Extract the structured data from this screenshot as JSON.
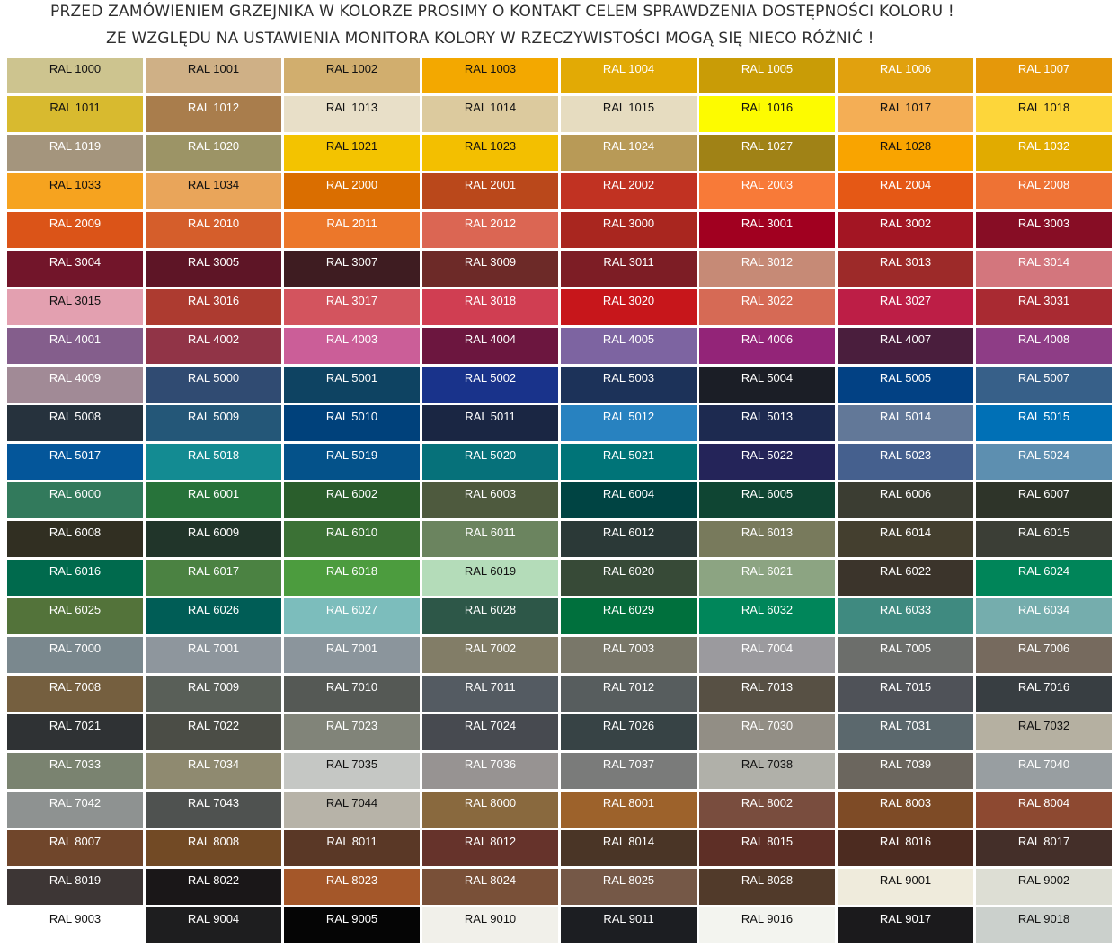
{
  "header": {
    "line1": "PRZED ZAMÓWIENIEM GRZEJNIKA W KOLORZE PROSIMY O KONTAKT CELEM SPRAWDZENIA DOSTĘPNOŚCI KOLORU !",
    "line2": "ZE WZGLĘDU NA USTAWIENIA MONITORA KOLORY W RZECZYWISTOŚCI MOGĄ SIĘ NIECO RÓŻNIĆ !"
  },
  "swatches": [
    {
      "label": "RAL 1000",
      "color": "#CDC48F",
      "text": "#111111"
    },
    {
      "label": "RAL 1001",
      "color": "#CFB086",
      "text": "#111111"
    },
    {
      "label": "RAL 1002",
      "color": "#D1AE6E",
      "text": "#111111"
    },
    {
      "label": "RAL 1003",
      "color": "#F3A800",
      "text": "#111111"
    },
    {
      "label": "RAL 1004",
      "color": "#E2AA05",
      "text": "#ffffff"
    },
    {
      "label": "RAL 1005",
      "color": "#C99C06",
      "text": "#ffffff"
    },
    {
      "label": "RAL 1006",
      "color": "#E1A10E",
      "text": "#ffffff"
    },
    {
      "label": "RAL 1007",
      "color": "#E5980A",
      "text": "#ffffff"
    },
    {
      "label": "RAL 1011",
      "color": "#D8BA2F",
      "text": "#111111"
    },
    {
      "label": "RAL 1012",
      "color": "#A97D4C",
      "text": "#ffffff"
    },
    {
      "label": "RAL 1013",
      "color": "#E8DFC8",
      "text": "#111111"
    },
    {
      "label": "RAL 1014",
      "color": "#DCCA9E",
      "text": "#111111"
    },
    {
      "label": "RAL 1015",
      "color": "#E6DCC0",
      "text": "#111111"
    },
    {
      "label": "RAL 1016",
      "color": "#FDFB00",
      "text": "#111111"
    },
    {
      "label": "RAL 1017",
      "color": "#F4AE55",
      "text": "#111111"
    },
    {
      "label": "RAL 1018",
      "color": "#FDD63A",
      "text": "#111111"
    },
    {
      "label": "RAL 1019",
      "color": "#A4957D",
      "text": "#ffffff"
    },
    {
      "label": "RAL 1020",
      "color": "#9C9466",
      "text": "#ffffff"
    },
    {
      "label": "RAL 1021",
      "color": "#F3C300",
      "text": "#111111"
    },
    {
      "label": "RAL 1023",
      "color": "#F3BF00",
      "text": "#111111"
    },
    {
      "label": "RAL 1024",
      "color": "#B89A57",
      "text": "#ffffff"
    },
    {
      "label": "RAL 1027",
      "color": "#A08216",
      "text": "#ffffff"
    },
    {
      "label": "RAL 1028",
      "color": "#F9A400",
      "text": "#111111"
    },
    {
      "label": "RAL 1032",
      "color": "#E1AB00",
      "text": "#ffffff"
    },
    {
      "label": "RAL 1033",
      "color": "#F6A31F",
      "text": "#111111"
    },
    {
      "label": "RAL 1034",
      "color": "#E9A55A",
      "text": "#111111"
    },
    {
      "label": "RAL 2000",
      "color": "#DA6E00",
      "text": "#ffffff"
    },
    {
      "label": "RAL 2001",
      "color": "#BA481B",
      "text": "#ffffff"
    },
    {
      "label": "RAL 2002",
      "color": "#C13222",
      "text": "#ffffff"
    },
    {
      "label": "RAL 2003",
      "color": "#F87A38",
      "text": "#ffffff"
    },
    {
      "label": "RAL 2004",
      "color": "#E55815",
      "text": "#ffffff"
    },
    {
      "label": "RAL 2008",
      "color": "#EE7234",
      "text": "#ffffff"
    },
    {
      "label": "RAL 2009",
      "color": "#DB5418",
      "text": "#ffffff"
    },
    {
      "label": "RAL 2010",
      "color": "#D55E2B",
      "text": "#ffffff"
    },
    {
      "label": "RAL 2011",
      "color": "#EC772A",
      "text": "#ffffff"
    },
    {
      "label": "RAL 2012",
      "color": "#DB6653",
      "text": "#ffffff"
    },
    {
      "label": "RAL 3000",
      "color": "#A9261F",
      "text": "#ffffff"
    },
    {
      "label": "RAL 3001",
      "color": "#A10020",
      "text": "#ffffff"
    },
    {
      "label": "RAL 3002",
      "color": "#A31523",
      "text": "#ffffff"
    },
    {
      "label": "RAL 3003",
      "color": "#870D25",
      "text": "#ffffff"
    },
    {
      "label": "RAL 3004",
      "color": "#72152A",
      "text": "#ffffff"
    },
    {
      "label": "RAL 3005",
      "color": "#5E1526",
      "text": "#ffffff"
    },
    {
      "label": "RAL 3007",
      "color": "#3E1C21",
      "text": "#ffffff"
    },
    {
      "label": "RAL 3009",
      "color": "#6D2A28",
      "text": "#ffffff"
    },
    {
      "label": "RAL 3011",
      "color": "#7D1D25",
      "text": "#ffffff"
    },
    {
      "label": "RAL 3012",
      "color": "#C68A76",
      "text": "#ffffff"
    },
    {
      "label": "RAL 3013",
      "color": "#9D2A29",
      "text": "#ffffff"
    },
    {
      "label": "RAL 3014",
      "color": "#D3767D",
      "text": "#ffffff"
    },
    {
      "label": "RAL 3015",
      "color": "#E3A0B0",
      "text": "#111111"
    },
    {
      "label": "RAL 3016",
      "color": "#AD3B30",
      "text": "#ffffff"
    },
    {
      "label": "RAL 3017",
      "color": "#D3545E",
      "text": "#ffffff"
    },
    {
      "label": "RAL 3018",
      "color": "#D03E52",
      "text": "#ffffff"
    },
    {
      "label": "RAL 3020",
      "color": "#C7161B",
      "text": "#ffffff"
    },
    {
      "label": "RAL 3022",
      "color": "#D66A55",
      "text": "#ffffff"
    },
    {
      "label": "RAL 3027",
      "color": "#BD1E46",
      "text": "#ffffff"
    },
    {
      "label": "RAL 3031",
      "color": "#A92A32",
      "text": "#ffffff"
    },
    {
      "label": "RAL 4001",
      "color": "#845E8C",
      "text": "#ffffff"
    },
    {
      "label": "RAL 4002",
      "color": "#913447",
      "text": "#ffffff"
    },
    {
      "label": "RAL 4003",
      "color": "#CB5E98",
      "text": "#ffffff"
    },
    {
      "label": "RAL 4004",
      "color": "#6C163F",
      "text": "#ffffff"
    },
    {
      "label": "RAL 4005",
      "color": "#7D64A1",
      "text": "#ffffff"
    },
    {
      "label": "RAL 4006",
      "color": "#932478",
      "text": "#ffffff"
    },
    {
      "label": "RAL 4007",
      "color": "#4A1E3D",
      "text": "#ffffff"
    },
    {
      "label": "RAL 4008",
      "color": "#8E3D86",
      "text": "#ffffff"
    },
    {
      "label": "RAL 4009",
      "color": "#A18A96",
      "text": "#ffffff"
    },
    {
      "label": "RAL 5000",
      "color": "#304B72",
      "text": "#ffffff"
    },
    {
      "label": "RAL 5001",
      "color": "#0E4362",
      "text": "#ffffff"
    },
    {
      "label": "RAL 5002",
      "color": "#19338B",
      "text": "#ffffff"
    },
    {
      "label": "RAL 5003",
      "color": "#1C3259",
      "text": "#ffffff"
    },
    {
      "label": "RAL 5004",
      "color": "#1B1E26",
      "text": "#ffffff"
    },
    {
      "label": "RAL 5005",
      "color": "#024184",
      "text": "#ffffff"
    },
    {
      "label": "RAL 5007",
      "color": "#376089",
      "text": "#ffffff"
    },
    {
      "label": "RAL 5008",
      "color": "#26323D",
      "text": "#ffffff"
    },
    {
      "label": "RAL 5009",
      "color": "#245778",
      "text": "#ffffff"
    },
    {
      "label": "RAL 5010",
      "color": "#00417B",
      "text": "#ffffff"
    },
    {
      "label": "RAL 5011",
      "color": "#1A2643",
      "text": "#ffffff"
    },
    {
      "label": "RAL 5012",
      "color": "#2882C0",
      "text": "#ffffff"
    },
    {
      "label": "RAL 5013",
      "color": "#1D2A50",
      "text": "#ffffff"
    },
    {
      "label": "RAL 5014",
      "color": "#627898",
      "text": "#ffffff"
    },
    {
      "label": "RAL 5015",
      "color": "#0070B6",
      "text": "#ffffff"
    },
    {
      "label": "RAL 5017",
      "color": "#04569A",
      "text": "#ffffff"
    },
    {
      "label": "RAL 5018",
      "color": "#138B92",
      "text": "#ffffff"
    },
    {
      "label": "RAL 5019",
      "color": "#04528A",
      "text": "#ffffff"
    },
    {
      "label": "RAL 5020",
      "color": "#06717A",
      "text": "#ffffff"
    },
    {
      "label": "RAL 5021",
      "color": "#007478",
      "text": "#ffffff"
    },
    {
      "label": "RAL 5022",
      "color": "#242459",
      "text": "#ffffff"
    },
    {
      "label": "RAL 5023",
      "color": "#45608E",
      "text": "#ffffff"
    },
    {
      "label": "RAL 5024",
      "color": "#5D8FB0",
      "text": "#ffffff"
    },
    {
      "label": "RAL 6000",
      "color": "#327A5C",
      "text": "#ffffff"
    },
    {
      "label": "RAL 6001",
      "color": "#27733A",
      "text": "#ffffff"
    },
    {
      "label": "RAL 6002",
      "color": "#2A5E2C",
      "text": "#ffffff"
    },
    {
      "label": "RAL 6003",
      "color": "#4E5A3E",
      "text": "#ffffff"
    },
    {
      "label": "RAL 6004",
      "color": "#004443",
      "text": "#ffffff"
    },
    {
      "label": "RAL 6005",
      "color": "#0F4533",
      "text": "#ffffff"
    },
    {
      "label": "RAL 6006",
      "color": "#3B3D32",
      "text": "#ffffff"
    },
    {
      "label": "RAL 6007",
      "color": "#2E3429",
      "text": "#ffffff"
    },
    {
      "label": "RAL 6008",
      "color": "#312F22",
      "text": "#ffffff"
    },
    {
      "label": "RAL 6009",
      "color": "#21352A",
      "text": "#ffffff"
    },
    {
      "label": "RAL 6010",
      "color": "#3B7135",
      "text": "#ffffff"
    },
    {
      "label": "RAL 6011",
      "color": "#6B845F",
      "text": "#ffffff"
    },
    {
      "label": "RAL 6012",
      "color": "#2B3937",
      "text": "#ffffff"
    },
    {
      "label": "RAL 6013",
      "color": "#787A5C",
      "text": "#ffffff"
    },
    {
      "label": "RAL 6014",
      "color": "#443F2F",
      "text": "#ffffff"
    },
    {
      "label": "RAL 6015",
      "color": "#3B3E36",
      "text": "#ffffff"
    },
    {
      "label": "RAL 6016",
      "color": "#006A4D",
      "text": "#ffffff"
    },
    {
      "label": "RAL 6017",
      "color": "#4B8242",
      "text": "#ffffff"
    },
    {
      "label": "RAL 6018",
      "color": "#4C9C3E",
      "text": "#ffffff"
    },
    {
      "label": "RAL 6019",
      "color": "#B4DCB9",
      "text": "#111111"
    },
    {
      "label": "RAL 6020",
      "color": "#374A37",
      "text": "#ffffff"
    },
    {
      "label": "RAL 6021",
      "color": "#8CA482",
      "text": "#ffffff"
    },
    {
      "label": "RAL 6022",
      "color": "#3B342B",
      "text": "#ffffff"
    },
    {
      "label": "RAL 6024",
      "color": "#008559",
      "text": "#ffffff"
    },
    {
      "label": "RAL 6025",
      "color": "#53733A",
      "text": "#ffffff"
    },
    {
      "label": "RAL 6026",
      "color": "#005D56",
      "text": "#ffffff"
    },
    {
      "label": "RAL 6027",
      "color": "#7CBDBC",
      "text": "#ffffff"
    },
    {
      "label": "RAL 6028",
      "color": "#2D5748",
      "text": "#ffffff"
    },
    {
      "label": "RAL 6029",
      "color": "#00703D",
      "text": "#ffffff"
    },
    {
      "label": "RAL 6032",
      "color": "#00865A",
      "text": "#ffffff"
    },
    {
      "label": "RAL 6033",
      "color": "#3F8A80",
      "text": "#ffffff"
    },
    {
      "label": "RAL 6034",
      "color": "#75ADAD",
      "text": "#ffffff"
    },
    {
      "label": "RAL 7000",
      "color": "#7A888E",
      "text": "#ffffff"
    },
    {
      "label": "RAL 7001",
      "color": "#8E969D",
      "text": "#ffffff"
    },
    {
      "label": "RAL 7001",
      "color": "#8B959C",
      "text": "#ffffff"
    },
    {
      "label": "RAL 7002",
      "color": "#827D67",
      "text": "#ffffff"
    },
    {
      "label": "RAL 7003",
      "color": "#797769",
      "text": "#ffffff"
    },
    {
      "label": "RAL 7004",
      "color": "#9B9A9E",
      "text": "#ffffff"
    },
    {
      "label": "RAL 7005",
      "color": "#6C6E6B",
      "text": "#ffffff"
    },
    {
      "label": "RAL 7006",
      "color": "#766A5E",
      "text": "#ffffff"
    },
    {
      "label": "RAL 7008",
      "color": "#755F3F",
      "text": "#ffffff"
    },
    {
      "label": "RAL 7009",
      "color": "#595F58",
      "text": "#ffffff"
    },
    {
      "label": "RAL 7010",
      "color": "#555955",
      "text": "#ffffff"
    },
    {
      "label": "RAL 7011",
      "color": "#545B62",
      "text": "#ffffff"
    },
    {
      "label": "RAL 7012",
      "color": "#575D5E",
      "text": "#ffffff"
    },
    {
      "label": "RAL 7013",
      "color": "#575044",
      "text": "#ffffff"
    },
    {
      "label": "RAL 7015",
      "color": "#4F5258",
      "text": "#ffffff"
    },
    {
      "label": "RAL 7016",
      "color": "#383E42",
      "text": "#ffffff"
    },
    {
      "label": "RAL 7021",
      "color": "#2F3234",
      "text": "#ffffff"
    },
    {
      "label": "RAL 7022",
      "color": "#4B4D46",
      "text": "#ffffff"
    },
    {
      "label": "RAL 7023",
      "color": "#818479",
      "text": "#ffffff"
    },
    {
      "label": "RAL 7024",
      "color": "#474A50",
      "text": "#ffffff"
    },
    {
      "label": "RAL 7026",
      "color": "#374345",
      "text": "#ffffff"
    },
    {
      "label": "RAL 7030",
      "color": "#928E85",
      "text": "#ffffff"
    },
    {
      "label": "RAL 7031",
      "color": "#5B686D",
      "text": "#ffffff"
    },
    {
      "label": "RAL 7032",
      "color": "#B5B0A1",
      "text": "#111111"
    },
    {
      "label": "RAL 7033",
      "color": "#7A8370",
      "text": "#ffffff"
    },
    {
      "label": "RAL 7034",
      "color": "#8F8A70",
      "text": "#ffffff"
    },
    {
      "label": "RAL 7035",
      "color": "#C5C7C4",
      "text": "#111111"
    },
    {
      "label": "RAL 7036",
      "color": "#979392",
      "text": "#ffffff"
    },
    {
      "label": "RAL 7037",
      "color": "#7A7B7A",
      "text": "#ffffff"
    },
    {
      "label": "RAL 7038",
      "color": "#B0B0A9",
      "text": "#111111"
    },
    {
      "label": "RAL 7039",
      "color": "#6B665E",
      "text": "#ffffff"
    },
    {
      "label": "RAL 7040",
      "color": "#989EA1",
      "text": "#ffffff"
    },
    {
      "label": "RAL 7042",
      "color": "#8E9291",
      "text": "#ffffff"
    },
    {
      "label": "RAL 7043",
      "color": "#4F5250",
      "text": "#ffffff"
    },
    {
      "label": "RAL 7044",
      "color": "#B7B3A8",
      "text": "#111111"
    },
    {
      "label": "RAL 8000",
      "color": "#89693E",
      "text": "#ffffff"
    },
    {
      "label": "RAL 8001",
      "color": "#9D622B",
      "text": "#ffffff"
    },
    {
      "label": "RAL 8002",
      "color": "#794D3E",
      "text": "#ffffff"
    },
    {
      "label": "RAL 8003",
      "color": "#7E4B26",
      "text": "#ffffff"
    },
    {
      "label": "RAL 8004",
      "color": "#8D4931",
      "text": "#ffffff"
    },
    {
      "label": "RAL 8007",
      "color": "#70462B",
      "text": "#ffffff"
    },
    {
      "label": "RAL 8008",
      "color": "#724A25",
      "text": "#ffffff"
    },
    {
      "label": "RAL 8011",
      "color": "#5A3826",
      "text": "#ffffff"
    },
    {
      "label": "RAL 8012",
      "color": "#66332B",
      "text": "#ffffff"
    },
    {
      "label": "RAL 8014",
      "color": "#4A3526",
      "text": "#ffffff"
    },
    {
      "label": "RAL 8015",
      "color": "#5E2F26",
      "text": "#ffffff"
    },
    {
      "label": "RAL 8016",
      "color": "#4C2B20",
      "text": "#ffffff"
    },
    {
      "label": "RAL 8017",
      "color": "#442F29",
      "text": "#ffffff"
    },
    {
      "label": "RAL 8019",
      "color": "#3D3635",
      "text": "#ffffff"
    },
    {
      "label": "RAL 8022",
      "color": "#1A1718",
      "text": "#ffffff"
    },
    {
      "label": "RAL 8023",
      "color": "#A45729",
      "text": "#ffffff"
    },
    {
      "label": "RAL 8024",
      "color": "#795038",
      "text": "#ffffff"
    },
    {
      "label": "RAL 8025",
      "color": "#755847",
      "text": "#ffffff"
    },
    {
      "label": "RAL 8028",
      "color": "#513A2A",
      "text": "#ffffff"
    },
    {
      "label": "RAL 9001",
      "color": "#EFEBDC",
      "text": "#111111"
    },
    {
      "label": "RAL 9002",
      "color": "#DDDED4",
      "text": "#111111"
    },
    {
      "label": "RAL 9003",
      "color": "#FFFFFF",
      "text": "#111111"
    },
    {
      "label": "RAL 9004",
      "color": "#1E1E1F",
      "text": "#ffffff"
    },
    {
      "label": "RAL 9005",
      "color": "#050505",
      "text": "#ffffff"
    },
    {
      "label": "RAL 9010",
      "color": "#F1F0EA",
      "text": "#111111"
    },
    {
      "label": "RAL 9011",
      "color": "#1C1E22",
      "text": "#ffffff"
    },
    {
      "label": "RAL 9016",
      "color": "#F3F4EF",
      "text": "#111111"
    },
    {
      "label": "RAL 9017",
      "color": "#1B1A1C",
      "text": "#ffffff"
    },
    {
      "label": "RAL 9018",
      "color": "#CBD0CC",
      "text": "#111111"
    }
  ]
}
